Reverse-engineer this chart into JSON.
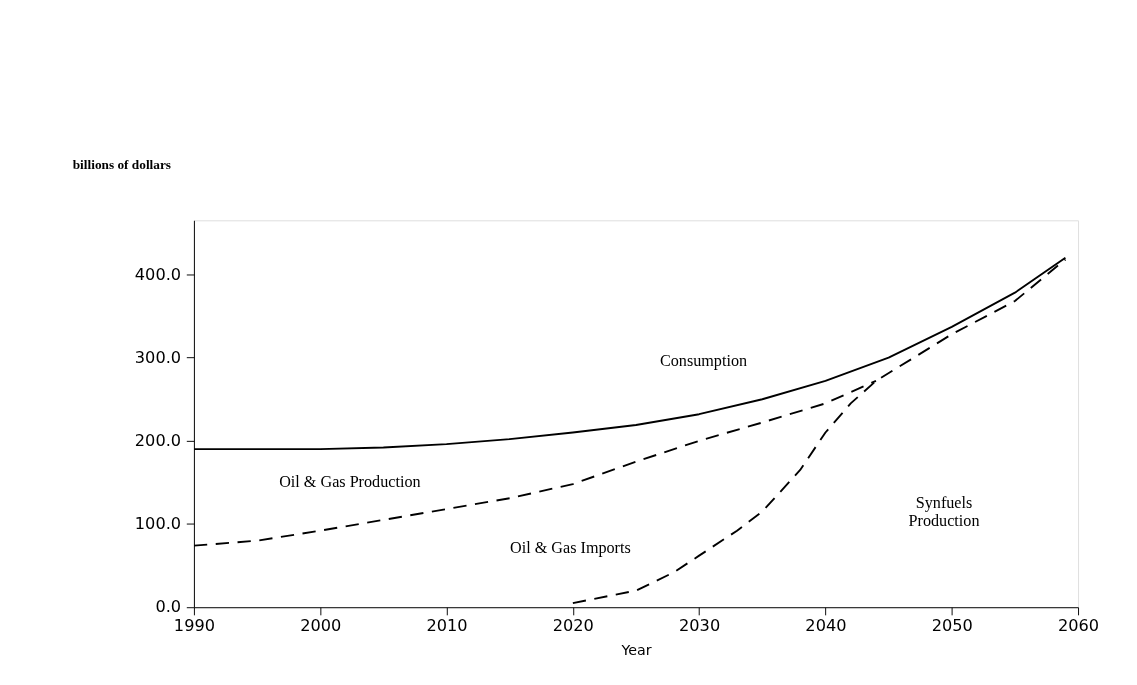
{
  "chart_data": {
    "type": "line",
    "xlabel": "Year",
    "ylabel": "billions of dollars",
    "xlim": [
      1990,
      2060
    ],
    "xticks": [
      1990,
      2000,
      2010,
      2020,
      2030,
      2040,
      2050,
      2060
    ],
    "ylim": [
      0,
      465
    ],
    "yticks": [
      {
        "value": 0,
        "label": "0.0"
      },
      {
        "value": 100,
        "label": "100.0"
      },
      {
        "value": 200,
        "label": "200.0"
      },
      {
        "value": 300,
        "label": "300.0"
      },
      {
        "value": 400,
        "label": "400.0"
      }
    ],
    "grid": false,
    "marker": "none",
    "series": [
      {
        "color": "#000000",
        "line_style": "solid",
        "x": [
          1990,
          1995,
          2000,
          2005,
          2010,
          2015,
          2020,
          2025,
          2030,
          2035,
          2040,
          2045,
          2050,
          2055,
          2059
        ],
        "values": [
          190,
          190,
          190,
          192,
          196,
          202,
          210,
          219,
          232,
          250,
          272,
          300,
          337,
          378,
          420
        ]
      },
      {
        "color": "#000000",
        "line_style": "dashed",
        "x": [
          1990,
          1995,
          2000,
          2005,
          2010,
          2015,
          2020,
          2025,
          2030,
          2035,
          2040,
          2044
        ],
        "values": [
          74,
          80,
          92,
          105,
          118,
          131,
          148,
          175,
          200,
          222,
          245,
          272
        ]
      },
      {
        "color": "#000000",
        "line_style": "dashed",
        "x": [
          2020,
          2025,
          2028,
          2030,
          2033,
          2035,
          2038,
          2040,
          2042,
          2044,
          2047,
          2050,
          2055,
          2059
        ],
        "values": [
          5,
          20,
          42,
          62,
          92,
          115,
          165,
          210,
          245,
          272,
          300,
          328,
          368,
          418
        ]
      }
    ],
    "annotations": [
      "Consumption",
      "Oil & Gas Production",
      "Oil & Gas Imports",
      "Synfuels\nProduction"
    ]
  }
}
